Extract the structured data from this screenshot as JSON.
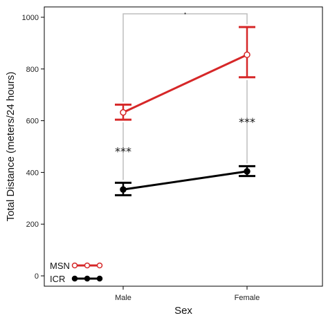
{
  "chart_data": {
    "type": "line",
    "title": "",
    "xlabel": "Sex",
    "ylabel": "Total Distance (meters/24 hours)",
    "categories": [
      "Male",
      "Female"
    ],
    "ylim": [
      -40,
      1040
    ],
    "yticks": [
      0,
      200,
      400,
      600,
      800,
      1000
    ],
    "grid": false,
    "legend_position": "bottom-left",
    "series": [
      {
        "name": "MSN",
        "color": "#d62728",
        "marker": "open-circle",
        "values": [
          632,
          855
        ],
        "error_low": [
          604,
          768
        ],
        "error_high": [
          662,
          962
        ]
      },
      {
        "name": "ICR",
        "color": "#000000",
        "marker": "filled-circle",
        "values": [
          334,
          404
        ],
        "error_low": [
          312,
          386
        ],
        "error_high": [
          360,
          424
        ]
      }
    ],
    "annotations": {
      "within_category": [
        "***",
        "***"
      ],
      "between_categories": "·"
    }
  }
}
